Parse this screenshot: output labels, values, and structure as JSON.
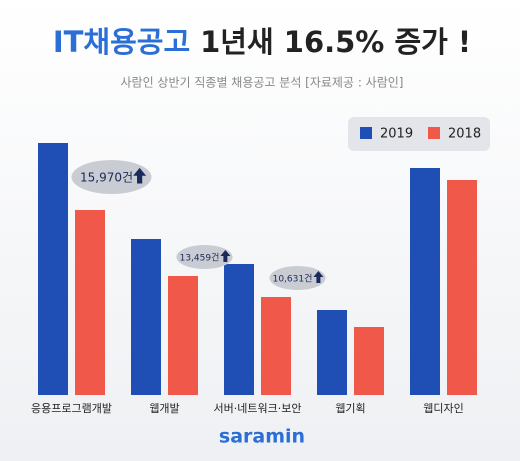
{
  "chart_data": {
    "type": "bar",
    "title": [
      "IT채용공고",
      "1년새 16.5% 증가 !"
    ],
    "subtitle": "사람인 상반기 직종별 채용공고 분석 [자료제공 : 사람인]",
    "categories": [
      "응용프로그램개발",
      "웹개발",
      "서버·네트워크·보안",
      "웹기획",
      "웹디자인"
    ],
    "series": [
      {
        "name": "2019",
        "color": "#1f4fb5",
        "values": [
          63000,
          39000,
          32750,
          21250,
          56750
        ]
      },
      {
        "name": "2018",
        "color": "#f0584a",
        "values": [
          46250,
          29750,
          24500,
          17000,
          53750
        ]
      }
    ],
    "annotations": [
      "15,970건",
      "13,459건",
      "10,631건"
    ],
    "ylim": [
      0,
      65000
    ],
    "brand": "saramin"
  }
}
